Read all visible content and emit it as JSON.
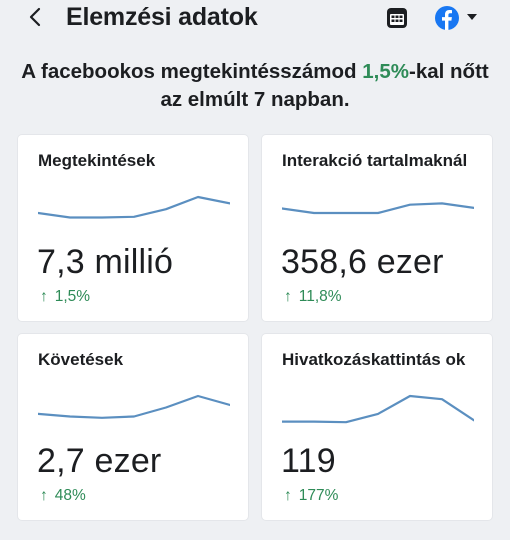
{
  "header": {
    "title": "Elemzési adatok",
    "icons": {
      "back": "back-chevron-icon",
      "calendar": "calendar-icon",
      "page": "facebook-icon",
      "menu": "chevron-down-icon"
    },
    "brand_color": "#1877f2"
  },
  "summary": {
    "text_before": "A facebookos megtekintésszámod ",
    "percent": "1,5%",
    "text_after": "-kal nőtt az elmúlt 7 napban."
  },
  "colors": {
    "positive": "#2e8b57",
    "sparkline": "#5b8fc0"
  },
  "cards": [
    {
      "title": "Megtekintések",
      "value": "7,3 millió",
      "change": "1,5%",
      "trend": [
        2.5,
        1.8,
        1.8,
        1.9,
        3.1,
        5.0,
        4.0
      ]
    },
    {
      "title": "Interakció tartalmaknál",
      "value": "358,6 ezer",
      "change": "11,8%",
      "trend": [
        3.2,
        2.5,
        2.5,
        2.5,
        3.8,
        4.0,
        3.3
      ]
    },
    {
      "title": "Követések",
      "value": "2,7 ezer",
      "change": "48%",
      "trend": [
        2.2,
        1.8,
        1.6,
        1.8,
        3.2,
        5.0,
        3.6
      ]
    },
    {
      "title": "Hivatkozáskattintás ok",
      "value": "119",
      "change": "177%",
      "trend": [
        1.0,
        1.0,
        0.9,
        2.2,
        5.0,
        4.5,
        1.2
      ]
    }
  ]
}
